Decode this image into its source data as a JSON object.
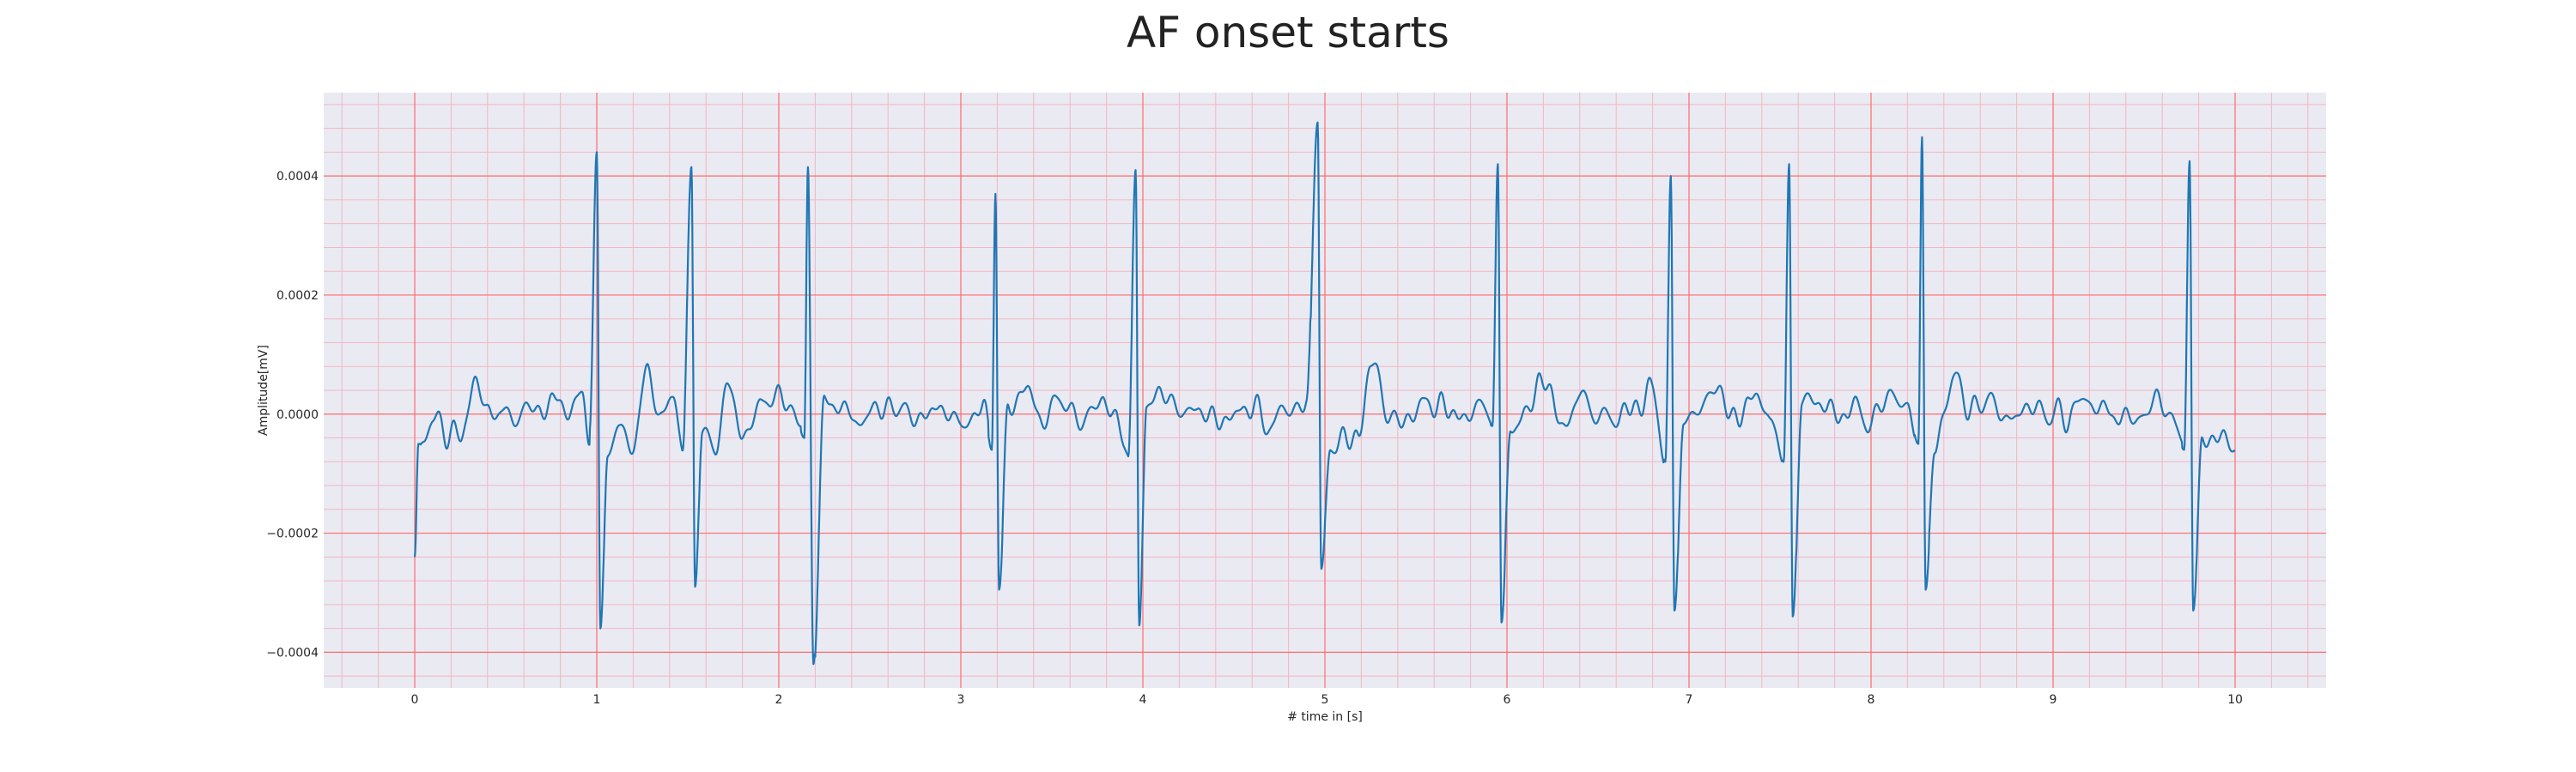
{
  "chart_data": {
    "type": "line",
    "title": "AF onset starts",
    "xlabel": "# time in [s]",
    "ylabel": "Amplitude[mV]",
    "xlim": [
      -0.5,
      10.5
    ],
    "ylim": [
      -0.00046,
      0.00054
    ],
    "x_ticks": [
      "0",
      "1",
      "2",
      "3",
      "4",
      "5",
      "6",
      "7",
      "8",
      "9",
      "10"
    ],
    "y_ticks": [
      "−0.0004",
      "−0.0002",
      "0.0000",
      "0.0002",
      "0.0004"
    ],
    "y_tick_values": [
      -0.0004,
      -0.0002,
      0,
      0.0002,
      0.0004
    ],
    "grid": true,
    "grid_major_color": "#ff6b6b",
    "grid_minor_color": "#f3b6c4",
    "background_color": "#eaeaf2",
    "line_color": "#1f77b4",
    "beat_times": [
      1.0,
      1.52,
      2.16,
      3.19,
      3.96,
      4.96,
      5.95,
      6.9,
      7.55,
      8.28,
      9.75
    ],
    "beat_peaks": [
      0.00044,
      0.000415,
      0.000415,
      0.00037,
      0.00041,
      0.00049,
      0.00042,
      0.0004,
      0.00042,
      0.000465,
      0.000425
    ],
    "beat_troughs": [
      -0.00036,
      -0.00029,
      -0.00042,
      -0.000295,
      -0.000355,
      -0.00026,
      -0.00035,
      -0.00033,
      -0.00034,
      -0.000295,
      -0.00033
    ],
    "series": [
      {
        "x": [
          0.0,
          0.02,
          0.05,
          0.1,
          0.18,
          0.25,
          0.33,
          0.4,
          0.45,
          0.5,
          0.55,
          0.62,
          0.7,
          0.77,
          0.85,
          0.92,
          0.96,
          1.0,
          1.02,
          1.06,
          1.12,
          1.2,
          1.28,
          1.35,
          1.42,
          1.47,
          1.52,
          1.54,
          1.58,
          1.65,
          1.72,
          1.8,
          1.9,
          2.0,
          2.08,
          2.14,
          2.16,
          2.19,
          2.25,
          2.35,
          2.45,
          2.55,
          2.65,
          2.75,
          2.85,
          2.95,
          3.05,
          3.12,
          3.17,
          3.19,
          3.21,
          3.26,
          3.35,
          3.45,
          3.55,
          3.65,
          3.75,
          3.85,
          3.92,
          3.96,
          3.98,
          4.02,
          4.1,
          4.2,
          4.3,
          4.4,
          4.5,
          4.6,
          4.7,
          4.8,
          4.9,
          4.96,
          4.98,
          5.03,
          5.1,
          5.18,
          5.25,
          5.35,
          5.45,
          5.55,
          5.65,
          5.75,
          5.85,
          5.92,
          5.95,
          5.97,
          6.02,
          6.1,
          6.2,
          6.3,
          6.4,
          6.5,
          6.6,
          6.7,
          6.8,
          6.87,
          6.9,
          6.92,
          6.97,
          7.05,
          7.15,
          7.25,
          7.35,
          7.45,
          7.52,
          7.55,
          7.57,
          7.62,
          7.7,
          7.8,
          7.9,
          8.0,
          8.1,
          8.2,
          8.26,
          8.28,
          8.3,
          8.35,
          8.45,
          8.55,
          8.65,
          8.75,
          8.85,
          8.95,
          9.05,
          9.15,
          9.25,
          9.35,
          9.45,
          9.55,
          9.65,
          9.72,
          9.75,
          9.77,
          9.82,
          9.9,
          10.0
        ],
        "y": [
          -0.00024,
          -5e-05,
          -5e-05,
          -1e-05,
          -3e-05,
          -4e-05,
          5e-05,
          2e-05,
          -1e-05,
          1e-05,
          -1e-05,
          1e-05,
          0.0,
          3e-05,
          0.0,
          4e-05,
          -3e-05,
          0.00044,
          -0.00036,
          -7e-05,
          -2e-05,
          -6e-05,
          8e-05,
          -1e-05,
          4e-05,
          -7e-05,
          0.000415,
          -0.00029,
          -3e-05,
          -6e-05,
          5e-05,
          -4e-05,
          2e-05,
          3e-05,
          1e-05,
          -4e-05,
          0.000415,
          -0.00042,
          2e-05,
          1e-05,
          -1e-05,
          1e-05,
          1e-05,
          -1e-05,
          1e-05,
          0.0,
          -2e-05,
          2e-05,
          -6e-05,
          0.00037,
          -0.000295,
          0.0,
          5e-05,
          -1e-05,
          3e-05,
          -2e-05,
          2e-05,
          0.0,
          -7e-05,
          0.00041,
          -0.000355,
          1e-05,
          4e-05,
          0.0,
          1e-05,
          -1e-05,
          0.0,
          1e-05,
          -2e-05,
          1e-05,
          2e-05,
          0.00049,
          -0.00026,
          -6e-05,
          -4e-05,
          -5e-05,
          9e-05,
          0.0,
          -1e-05,
          2e-05,
          1e-05,
          -1e-05,
          2e-05,
          -2e-05,
          0.00042,
          -0.00035,
          -3e-05,
          0.0,
          6e-05,
          -2e-05,
          3e-05,
          0.0,
          -1e-05,
          1e-05,
          4e-05,
          -8e-05,
          0.0004,
          -0.00033,
          -2e-05,
          1e-05,
          4e-05,
          -1e-05,
          3e-05,
          0.0,
          -8e-05,
          0.00042,
          -0.00034,
          2e-05,
          2e-05,
          0.0,
          1e-05,
          -1e-05,
          3e-05,
          1e-05,
          -5e-05,
          0.000465,
          -0.000295,
          -5e-05,
          6e-05,
          1e-05,
          2e-05,
          -1e-05,
          1e-05,
          1e-05,
          -1e-05,
          2e-05,
          1e-05,
          0.0,
          -1e-05,
          2e-05,
          0.0,
          -6e-05,
          0.000425,
          -0.00033,
          -5e-05,
          -3e-05,
          -6e-05
        ]
      }
    ]
  }
}
